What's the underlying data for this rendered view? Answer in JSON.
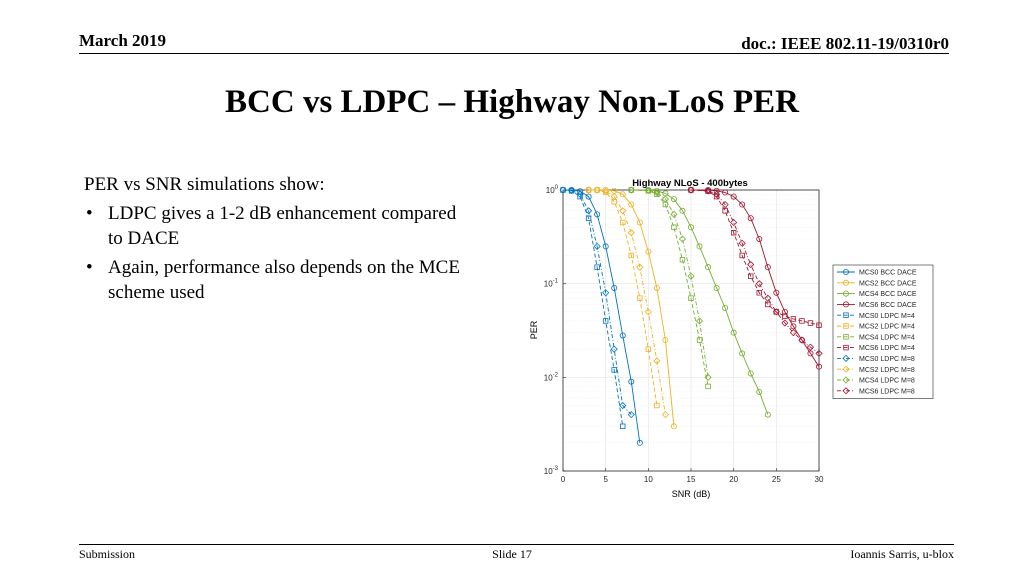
{
  "header": {
    "date": "March 2019",
    "doc": "doc.: IEEE 802.11-19/0310r0"
  },
  "title": "BCC vs LDPC – Highway Non-LoS PER",
  "body": {
    "lead": "PER vs SNR simulations show:",
    "bullets": [
      "LDPC gives a 1-2 dB enhancement compared to DACE",
      "Again, performance also depends on the MCE scheme used"
    ]
  },
  "footer": {
    "left": "Submission",
    "center": "Slide 17",
    "right": "Ioannis Sarris, u-blox"
  },
  "chart_data": {
    "type": "line",
    "title": "Highway NLoS - 400bytes",
    "xlabel": "SNR (dB)",
    "ylabel": "PER",
    "xlim": [
      0,
      30
    ],
    "ylim": [
      0.001,
      1
    ],
    "yscale": "log",
    "grid": true,
    "legend_position": "right",
    "xticks": [
      0,
      5,
      10,
      15,
      20,
      25,
      30
    ],
    "yticks": [
      {
        "value": 1,
        "base": "10",
        "exp": "0"
      },
      {
        "value": 0.1,
        "base": "10",
        "exp": "-1"
      },
      {
        "value": 0.01,
        "base": "10",
        "exp": "-2"
      },
      {
        "value": 0.001,
        "base": "10",
        "exp": "-3"
      }
    ],
    "series": [
      {
        "name": "MCS0 BCC DACE",
        "color": "#0072BD",
        "dash": "solid",
        "marker": "circle",
        "x": [
          0,
          1,
          2,
          3,
          4,
          5,
          6,
          7,
          8,
          9
        ],
        "y": [
          1,
          1,
          0.97,
          0.85,
          0.55,
          0.25,
          0.09,
          0.028,
          0.009,
          0.002
        ]
      },
      {
        "name": "MCS2 BCC DACE",
        "color": "#EDB120",
        "dash": "solid",
        "marker": "circle",
        "x": [
          3,
          4,
          5,
          6,
          7,
          8,
          9,
          10,
          11,
          12,
          13
        ],
        "y": [
          1,
          1,
          1,
          0.98,
          0.9,
          0.7,
          0.45,
          0.22,
          0.09,
          0.025,
          0.003
        ]
      },
      {
        "name": "MCS4 BCC DACE",
        "color": "#77AC30",
        "dash": "solid",
        "marker": "circle",
        "x": [
          8,
          10,
          11,
          12,
          13,
          14,
          15,
          16,
          17,
          18,
          19,
          20,
          21,
          22,
          23,
          24
        ],
        "y": [
          1,
          1,
          0.98,
          0.92,
          0.8,
          0.6,
          0.4,
          0.25,
          0.15,
          0.09,
          0.055,
          0.03,
          0.018,
          0.011,
          0.007,
          0.004
        ]
      },
      {
        "name": "MCS6 BCC DACE",
        "color": "#A2142F",
        "dash": "solid",
        "marker": "circle",
        "x": [
          15,
          17,
          18,
          19,
          20,
          21,
          22,
          23,
          24,
          25,
          26,
          27,
          28,
          29,
          30
        ],
        "y": [
          1,
          1,
          0.98,
          0.94,
          0.85,
          0.7,
          0.5,
          0.3,
          0.15,
          0.08,
          0.05,
          0.035,
          0.025,
          0.018,
          0.013
        ]
      },
      {
        "name": "MCS0 LDPC M=4",
        "color": "#0072BD",
        "dash": "dash",
        "marker": "square",
        "x": [
          0,
          1,
          2,
          3,
          4,
          5,
          6,
          7
        ],
        "y": [
          1,
          0.98,
          0.85,
          0.5,
          0.15,
          0.04,
          0.012,
          0.003
        ]
      },
      {
        "name": "MCS2 LDPC M=4",
        "color": "#EDB120",
        "dash": "dash",
        "marker": "square",
        "x": [
          3,
          4,
          5,
          6,
          7,
          8,
          9,
          10,
          11
        ],
        "y": [
          1,
          1,
          0.95,
          0.75,
          0.45,
          0.2,
          0.07,
          0.02,
          0.005
        ]
      },
      {
        "name": "MCS4 LDPC M=4",
        "color": "#77AC30",
        "dash": "dash",
        "marker": "square",
        "x": [
          8,
          10,
          11,
          12,
          13,
          14,
          15,
          16,
          17
        ],
        "y": [
          1,
          0.98,
          0.9,
          0.7,
          0.4,
          0.18,
          0.07,
          0.025,
          0.008
        ]
      },
      {
        "name": "MCS6 LDPC M=4",
        "color": "#A2142F",
        "dash": "dash",
        "marker": "square",
        "x": [
          15,
          17,
          18,
          19,
          20,
          21,
          22,
          23,
          24,
          25,
          26,
          27,
          28,
          29,
          30
        ],
        "y": [
          1,
          0.97,
          0.85,
          0.6,
          0.35,
          0.2,
          0.12,
          0.08,
          0.06,
          0.05,
          0.045,
          0.042,
          0.04,
          0.038,
          0.036
        ]
      },
      {
        "name": "MCS0 LDPC M=8",
        "color": "#0072BD",
        "dash": "dashdot",
        "marker": "diamond",
        "x": [
          0,
          1,
          2,
          3,
          4,
          5,
          6,
          7,
          8
        ],
        "y": [
          1,
          0.99,
          0.9,
          0.6,
          0.25,
          0.08,
          0.02,
          0.005,
          0.004
        ]
      },
      {
        "name": "MCS2 LDPC M=8",
        "color": "#EDB120",
        "dash": "dashdot",
        "marker": "diamond",
        "x": [
          3,
          4,
          5,
          6,
          7,
          8,
          9,
          10,
          11,
          12
        ],
        "y": [
          1,
          1,
          0.97,
          0.85,
          0.6,
          0.35,
          0.15,
          0.05,
          0.015,
          0.004
        ]
      },
      {
        "name": "MCS4 LDPC M=8",
        "color": "#77AC30",
        "dash": "dashdot",
        "marker": "diamond",
        "x": [
          8,
          10,
          11,
          12,
          13,
          14,
          15,
          16,
          17
        ],
        "y": [
          1,
          0.99,
          0.94,
          0.8,
          0.55,
          0.3,
          0.12,
          0.04,
          0.01
        ]
      },
      {
        "name": "MCS6 LDPC M=8",
        "color": "#A2142F",
        "dash": "dashdot",
        "marker": "diamond",
        "x": [
          15,
          17,
          18,
          19,
          20,
          21,
          22,
          23,
          24,
          25,
          26,
          27,
          28,
          29,
          30
        ],
        "y": [
          1,
          0.98,
          0.9,
          0.7,
          0.45,
          0.27,
          0.16,
          0.1,
          0.07,
          0.05,
          0.038,
          0.03,
          0.025,
          0.021,
          0.018
        ]
      }
    ]
  }
}
